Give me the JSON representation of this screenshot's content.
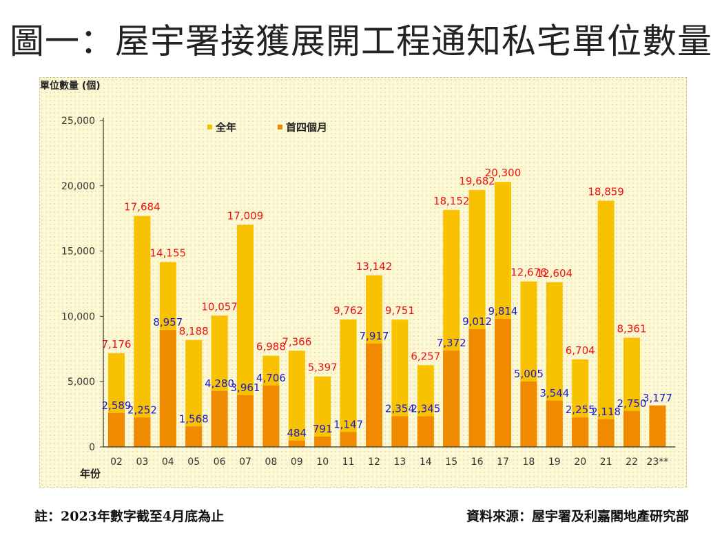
{
  "colors": {
    "full_year": "#f8c200",
    "first_four_months": "#f08a00",
    "full_label": "#ee1111",
    "first4_label": "#1a1acc",
    "axis": "#333333"
  },
  "chart_data": {
    "type": "bar",
    "title": "圖一：屋宇署接獲展開工程通知私宅單位數量",
    "ylabel": "單位數量 (個)",
    "xlabel": "年份",
    "ylim": [
      0,
      25000
    ],
    "yticks": [
      0,
      5000,
      10000,
      15000,
      20000,
      25000
    ],
    "ytick_labels": [
      "0",
      "5,000",
      "10,000",
      "15,000",
      "20,000",
      "25,000"
    ],
    "categories": [
      "02",
      "03",
      "04",
      "05",
      "06",
      "07",
      "08",
      "09",
      "10",
      "11",
      "12",
      "13",
      "14",
      "15",
      "16",
      "17",
      "18",
      "19",
      "20",
      "21",
      "22",
      "23**"
    ],
    "series": [
      {
        "name": "全年",
        "values": [
          7176,
          17684,
          14155,
          8188,
          10057,
          17009,
          6988,
          7366,
          5397,
          9762,
          13142,
          9751,
          6257,
          18152,
          19682,
          20300,
          12676,
          12604,
          6704,
          18859,
          8361,
          null
        ],
        "labels": [
          "7,176",
          "17,684",
          "14,155",
          "8,188",
          "10,057",
          "17,009",
          "6,988",
          "7,366",
          "5,397",
          "9,762",
          "13,142",
          "9,751",
          "6,257",
          "18,152",
          "19,682",
          "20,300",
          "12,676",
          "12,604",
          "6,704",
          "18,859",
          "8,361",
          ""
        ]
      },
      {
        "name": "首四個月",
        "values": [
          2589,
          2252,
          8957,
          1568,
          4280,
          3961,
          4706,
          484,
          791,
          1147,
          7917,
          2354,
          2345,
          7372,
          9012,
          9814,
          5005,
          3544,
          2255,
          2118,
          2750,
          3177
        ],
        "labels": [
          "2,589",
          "2,252",
          "8,957",
          "1,568",
          "4,280",
          "3,961",
          "4,706",
          "484",
          "791",
          "1,147",
          "7,917",
          "2,354",
          "2,345",
          "7,372",
          "9,012",
          "9,814",
          "5,005",
          "3,544",
          "2,255",
          "2,118",
          "2,750",
          "3,177"
        ]
      }
    ],
    "legend": "top-left"
  },
  "footer": {
    "note": "註：2023年數字截至4月底為止",
    "source": "資料來源：屋宇署及利嘉閣地產研究部"
  }
}
